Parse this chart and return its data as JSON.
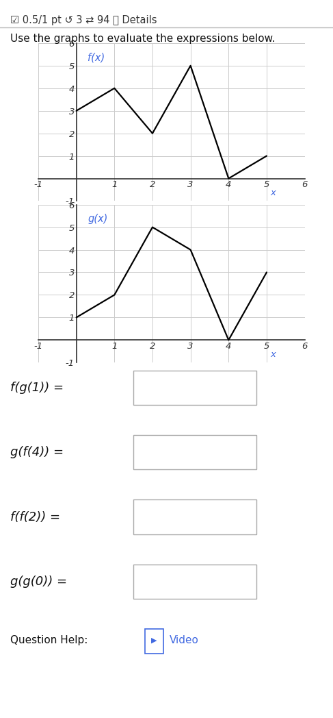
{
  "header_text_parts": [
    {
      "text": "☑ 0.5/1 pt ",
      "color": "#333333"
    },
    {
      "text": "↺ 3 ",
      "color": "#333333"
    },
    {
      "text": "⇄ 94 ",
      "color": "#333333"
    },
    {
      "text": "ⓘ Details",
      "color": "#333333"
    }
  ],
  "instruction": "Use the graphs to evaluate the expressions below.",
  "f_points": [
    [
      0,
      3
    ],
    [
      1,
      4
    ],
    [
      2,
      2
    ],
    [
      3,
      5
    ],
    [
      4,
      0
    ],
    [
      5,
      1
    ]
  ],
  "g_points": [
    [
      0,
      1
    ],
    [
      1,
      2
    ],
    [
      2,
      5
    ],
    [
      3,
      4
    ],
    [
      4,
      0
    ],
    [
      5,
      3
    ]
  ],
  "f_label": "f(x)",
  "g_label": "g(x)",
  "x_label": "x",
  "xlim": [
    -1,
    6
  ],
  "ylim": [
    -1,
    6
  ],
  "line_color": "#000000",
  "label_color": "#4169E1",
  "grid_color": "#cccccc",
  "bg_color": "#ffffff",
  "expressions": [
    "f(g(1)) =",
    "g(f(4)) =",
    "f(f(2)) =",
    "g(g(0)) ="
  ],
  "question_help": "Question Help:",
  "video_text": " Video"
}
